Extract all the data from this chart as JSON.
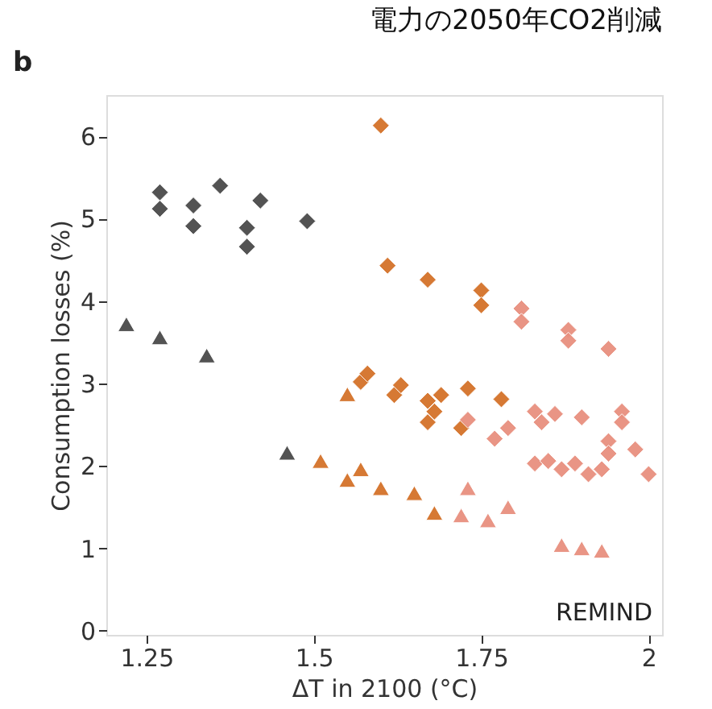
{
  "chart_data": {
    "type": "scatter",
    "title": "電力の2050年CO2削減",
    "xlabel": "ΔT in 2100 (°C)",
    "ylabel": "Consumption losses (%)",
    "annotations": [
      "b",
      "REMIND"
    ],
    "xlim": [
      1.19,
      2.02
    ],
    "ylim": [
      -0.05,
      6.5
    ],
    "xticks": [
      1.25,
      1.5,
      1.75,
      2
    ],
    "yticks": [
      0,
      1,
      2,
      3,
      4,
      5,
      6
    ],
    "grid": false,
    "legend": false,
    "series": [
      {
        "color": "#4a4a4a",
        "marker": "diamond",
        "x": [
          1.27,
          1.27,
          1.32,
          1.32,
          1.36,
          1.4,
          1.4,
          1.42,
          1.49
        ],
        "values": [
          5.32,
          5.12,
          5.16,
          4.91,
          5.4,
          4.89,
          4.66,
          5.22,
          4.97
        ]
      },
      {
        "color": "#4a4a4a",
        "marker": "triangle",
        "x": [
          1.22,
          1.27,
          1.34,
          1.46
        ],
        "values": [
          3.72,
          3.56,
          3.34,
          2.16
        ]
      },
      {
        "color": "#d4722a",
        "marker": "diamond",
        "x": [
          1.6,
          1.61,
          1.67,
          1.75,
          1.75,
          1.57,
          1.58,
          1.62,
          1.63,
          1.67,
          1.69,
          1.67,
          1.68,
          1.72,
          1.73,
          1.78
        ],
        "values": [
          6.13,
          4.43,
          4.26,
          4.13,
          3.95,
          3.02,
          3.12,
          2.86,
          2.98,
          2.79,
          2.86,
          2.53,
          2.66,
          2.46,
          2.94,
          2.81
        ]
      },
      {
        "color": "#d4722a",
        "marker": "triangle",
        "x": [
          1.55,
          1.51,
          1.55,
          1.57,
          1.6,
          1.65,
          1.68
        ],
        "values": [
          2.87,
          2.06,
          1.83,
          1.96,
          1.73,
          1.67,
          1.43
        ]
      },
      {
        "color": "#e8907f",
        "marker": "diamond",
        "x": [
          1.81,
          1.81,
          1.88,
          1.88,
          1.94,
          1.73,
          1.77,
          1.79,
          1.83,
          1.84,
          1.86,
          1.9,
          1.96,
          1.96,
          1.94,
          1.94,
          1.98,
          2.0,
          1.83,
          1.85,
          1.87,
          1.89,
          1.91,
          1.93
        ],
        "values": [
          3.91,
          3.75,
          3.65,
          3.52,
          3.42,
          2.56,
          2.33,
          2.46,
          2.66,
          2.53,
          2.63,
          2.59,
          2.66,
          2.53,
          2.3,
          2.15,
          2.2,
          1.9,
          2.03,
          2.06,
          1.96,
          2.03,
          1.9,
          1.96
        ]
      },
      {
        "color": "#e8907f",
        "marker": "triangle",
        "x": [
          1.73,
          1.72,
          1.76,
          1.79,
          1.87,
          1.9,
          1.93
        ],
        "values": [
          1.73,
          1.4,
          1.34,
          1.5,
          1.04,
          1.0,
          0.97
        ]
      }
    ]
  }
}
